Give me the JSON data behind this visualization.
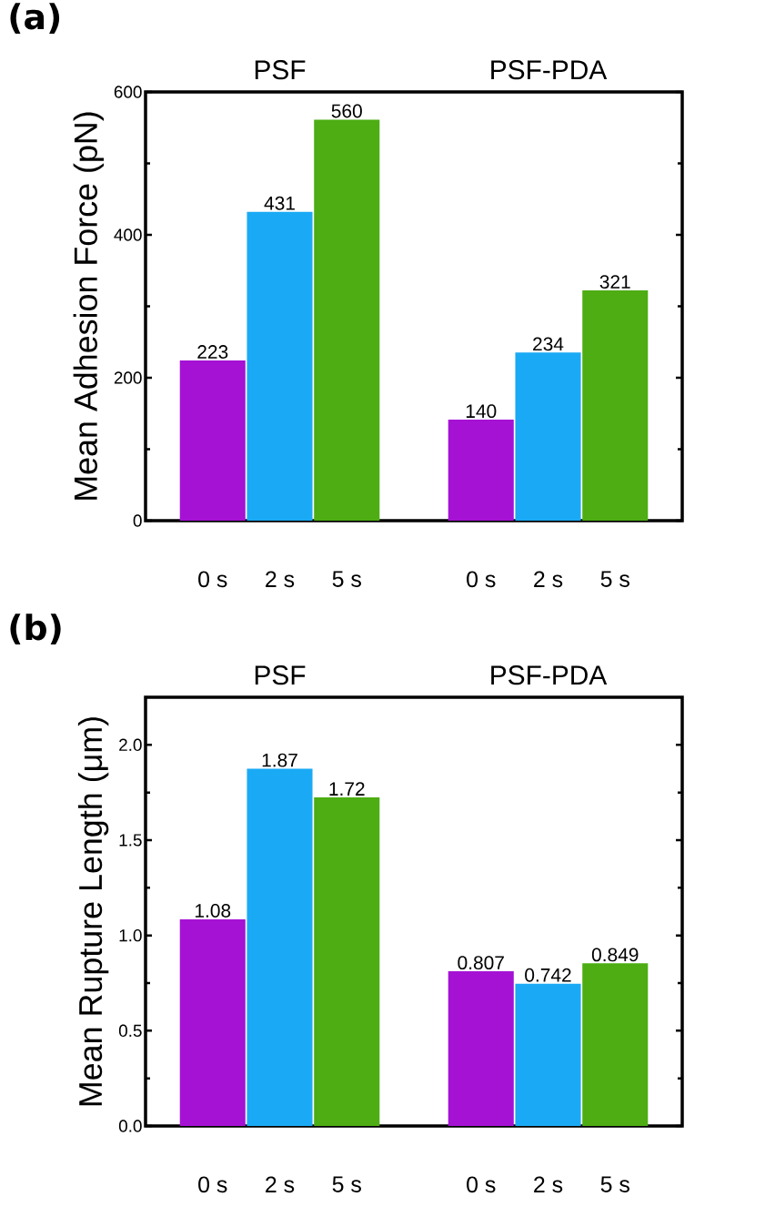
{
  "chart_data": [
    {
      "type": "bar",
      "title": "(a)",
      "ylabel": "Mean Adhesion Force (pN)",
      "annotations": [
        "PSF",
        "PSF-PDA"
      ],
      "categories": [
        "0 s",
        "2 s",
        "5 s",
        null,
        "0 s",
        "2 s",
        "5 s"
      ],
      "values": [
        223,
        431,
        560,
        null,
        140,
        234,
        321
      ],
      "colors": [
        "#a512d4",
        "#1aaaf5",
        "#4dad13",
        null,
        "#a512d4",
        "#1aaaf5",
        "#4dad13"
      ],
      "ylim": [
        0,
        600
      ],
      "yticks": [
        0,
        200,
        400,
        600
      ],
      "data_labels": true
    },
    {
      "type": "bar",
      "title": "(b)",
      "ylabel": "Mean Rupture Length (μm)",
      "annotations": [
        "PSF",
        "PSF-PDA"
      ],
      "categories": [
        "0 s",
        "2 s",
        "5 s",
        null,
        "0 s",
        "2 s",
        "5 s"
      ],
      "values": [
        1.08,
        1.87,
        1.72,
        null,
        0.807,
        0.742,
        0.849
      ],
      "colors": [
        "#a512d4",
        "#1aaaf5",
        "#4dad13",
        null,
        "#a512d4",
        "#1aaaf5",
        "#4dad13"
      ],
      "ylim": [
        0,
        2.25
      ],
      "yticks": [
        {
          "value": 0,
          "label": "0.0"
        },
        {
          "value": 0.5,
          "label": "0.5"
        },
        {
          "value": 1,
          "label": "1.0"
        },
        {
          "value": 1.5,
          "label": "1.5"
        },
        {
          "value": 2,
          "label": "2.0"
        }
      ],
      "data_labels": true
    }
  ]
}
